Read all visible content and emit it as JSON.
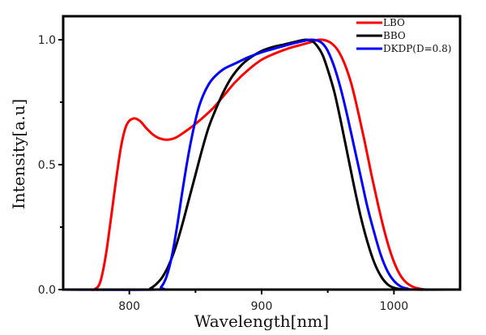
{
  "chart_data": {
    "type": "line",
    "title": "",
    "xlabel": "Wavelength[nm]",
    "ylabel": "Intensity[a.u]",
    "xlim": [
      750,
      1050
    ],
    "ylim": [
      0,
      1.0
    ],
    "xticks": [
      800,
      900,
      1000
    ],
    "xtick_labels": [
      "800",
      "900",
      "1000"
    ],
    "xminor": [
      850,
      950
    ],
    "yticks": [
      0.0,
      0.5,
      1.0
    ],
    "ytick_labels": [
      "0.0",
      "0.5",
      "1.0"
    ],
    "yminor": [
      0.25,
      0.75
    ],
    "grid": false,
    "legend_position": "top-right",
    "series": [
      {
        "name": "LBO",
        "color": "#ff0000",
        "points": [
          [
            750,
            0
          ],
          [
            770,
            0
          ],
          [
            774,
            0.002
          ],
          [
            778,
            0.03
          ],
          [
            782,
            0.13
          ],
          [
            786,
            0.28
          ],
          [
            790,
            0.44
          ],
          [
            794,
            0.58
          ],
          [
            798,
            0.66
          ],
          [
            803,
            0.685
          ],
          [
            808,
            0.675
          ],
          [
            813,
            0.645
          ],
          [
            818,
            0.62
          ],
          [
            823,
            0.605
          ],
          [
            829,
            0.6
          ],
          [
            835,
            0.608
          ],
          [
            841,
            0.628
          ],
          [
            848,
            0.655
          ],
          [
            856,
            0.69
          ],
          [
            864,
            0.73
          ],
          [
            872,
            0.78
          ],
          [
            880,
            0.83
          ],
          [
            890,
            0.88
          ],
          [
            900,
            0.92
          ],
          [
            910,
            0.945
          ],
          [
            920,
            0.965
          ],
          [
            930,
            0.98
          ],
          [
            937,
            0.99
          ],
          [
            943,
            1.0
          ],
          [
            948,
            0.998
          ],
          [
            953,
            0.985
          ],
          [
            958,
            0.955
          ],
          [
            963,
            0.9
          ],
          [
            968,
            0.82
          ],
          [
            973,
            0.71
          ],
          [
            978,
            0.59
          ],
          [
            983,
            0.46
          ],
          [
            988,
            0.34
          ],
          [
            993,
            0.23
          ],
          [
            998,
            0.14
          ],
          [
            1003,
            0.075
          ],
          [
            1008,
            0.035
          ],
          [
            1014,
            0.012
          ],
          [
            1020,
            0.003
          ],
          [
            1026,
            0
          ],
          [
            1050,
            0
          ]
        ]
      },
      {
        "name": "BBO",
        "color": "#000000",
        "points": [
          [
            750,
            0
          ],
          [
            812,
            0
          ],
          [
            816,
            0.005
          ],
          [
            820,
            0.02
          ],
          [
            825,
            0.05
          ],
          [
            830,
            0.1
          ],
          [
            835,
            0.17
          ],
          [
            840,
            0.26
          ],
          [
            845,
            0.36
          ],
          [
            850,
            0.46
          ],
          [
            855,
            0.56
          ],
          [
            860,
            0.65
          ],
          [
            866,
            0.73
          ],
          [
            872,
            0.8
          ],
          [
            878,
            0.855
          ],
          [
            885,
            0.9
          ],
          [
            892,
            0.93
          ],
          [
            900,
            0.955
          ],
          [
            908,
            0.97
          ],
          [
            916,
            0.98
          ],
          [
            924,
            0.99
          ],
          [
            933,
            1.0
          ],
          [
            938,
            0.995
          ],
          [
            942,
            0.975
          ],
          [
            946,
            0.94
          ],
          [
            950,
            0.88
          ],
          [
            955,
            0.79
          ],
          [
            960,
            0.67
          ],
          [
            965,
            0.54
          ],
          [
            970,
            0.41
          ],
          [
            975,
            0.29
          ],
          [
            980,
            0.19
          ],
          [
            985,
            0.11
          ],
          [
            990,
            0.055
          ],
          [
            995,
            0.022
          ],
          [
            1000,
            0.007
          ],
          [
            1006,
            0.001
          ],
          [
            1010,
            0
          ],
          [
            1050,
            0
          ]
        ]
      },
      {
        "name": "DKDP(D=0.8)",
        "color": "#0000ff",
        "points": [
          [
            750,
            0
          ],
          [
            820,
            0
          ],
          [
            824,
            0.01
          ],
          [
            828,
            0.05
          ],
          [
            832,
            0.13
          ],
          [
            836,
            0.25
          ],
          [
            840,
            0.39
          ],
          [
            844,
            0.52
          ],
          [
            848,
            0.63
          ],
          [
            852,
            0.72
          ],
          [
            856,
            0.78
          ],
          [
            861,
            0.83
          ],
          [
            866,
            0.86
          ],
          [
            872,
            0.885
          ],
          [
            880,
            0.905
          ],
          [
            890,
            0.93
          ],
          [
            900,
            0.95
          ],
          [
            910,
            0.965
          ],
          [
            920,
            0.98
          ],
          [
            930,
            0.993
          ],
          [
            937,
            1.0
          ],
          [
            942,
            0.997
          ],
          [
            946,
            0.985
          ],
          [
            950,
            0.955
          ],
          [
            955,
            0.89
          ],
          [
            960,
            0.8
          ],
          [
            965,
            0.69
          ],
          [
            970,
            0.57
          ],
          [
            975,
            0.45
          ],
          [
            980,
            0.33
          ],
          [
            985,
            0.23
          ],
          [
            990,
            0.14
          ],
          [
            995,
            0.075
          ],
          [
            1000,
            0.035
          ],
          [
            1005,
            0.013
          ],
          [
            1010,
            0.004
          ],
          [
            1016,
            0
          ],
          [
            1050,
            0
          ]
        ]
      }
    ]
  }
}
